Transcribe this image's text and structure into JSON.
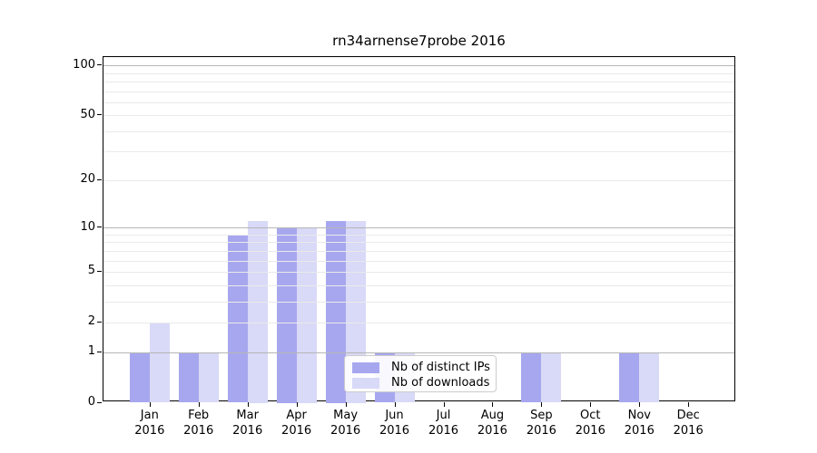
{
  "chart_data": {
    "type": "bar",
    "title": "rn34arnense7probe 2016",
    "x_categories": [
      "Jan",
      "Feb",
      "Mar",
      "Apr",
      "May",
      "Jun",
      "Jul",
      "Aug",
      "Sep",
      "Oct",
      "Nov",
      "Dec"
    ],
    "x_year": "2016",
    "series": [
      {
        "name": "Nb of distinct IPs",
        "color": "#a7a7ef",
        "values": [
          1,
          1,
          9,
          10,
          11,
          1,
          0,
          0,
          1,
          0,
          1,
          0
        ]
      },
      {
        "name": "Nb of downloads",
        "color": "#d9d9f8",
        "values": [
          2,
          1,
          11,
          10,
          11,
          1,
          0,
          0,
          1,
          0,
          1,
          0
        ]
      }
    ],
    "xlabel": "",
    "ylabel": "",
    "y_scale": "log1p",
    "ylim": [
      0,
      112
    ],
    "y_tick_values": [
      0,
      1,
      2,
      5,
      10,
      20,
      50,
      100
    ],
    "y_tick_labels": [
      "0",
      "1",
      "2",
      "5",
      "10",
      "20",
      "50",
      "100"
    ],
    "y_major_gridlines": [
      1,
      10,
      100
    ],
    "y_minor_gridlines": [
      2,
      3,
      4,
      5,
      6,
      7,
      8,
      9,
      20,
      30,
      40,
      50,
      60,
      70,
      80,
      90
    ],
    "grid": true,
    "legend_position": "lower center"
  },
  "colors": {
    "major_grid": "#b6b6b6",
    "minor_grid": "#eaeaea",
    "axes_frame": "#000000",
    "background": "#ffffff"
  }
}
